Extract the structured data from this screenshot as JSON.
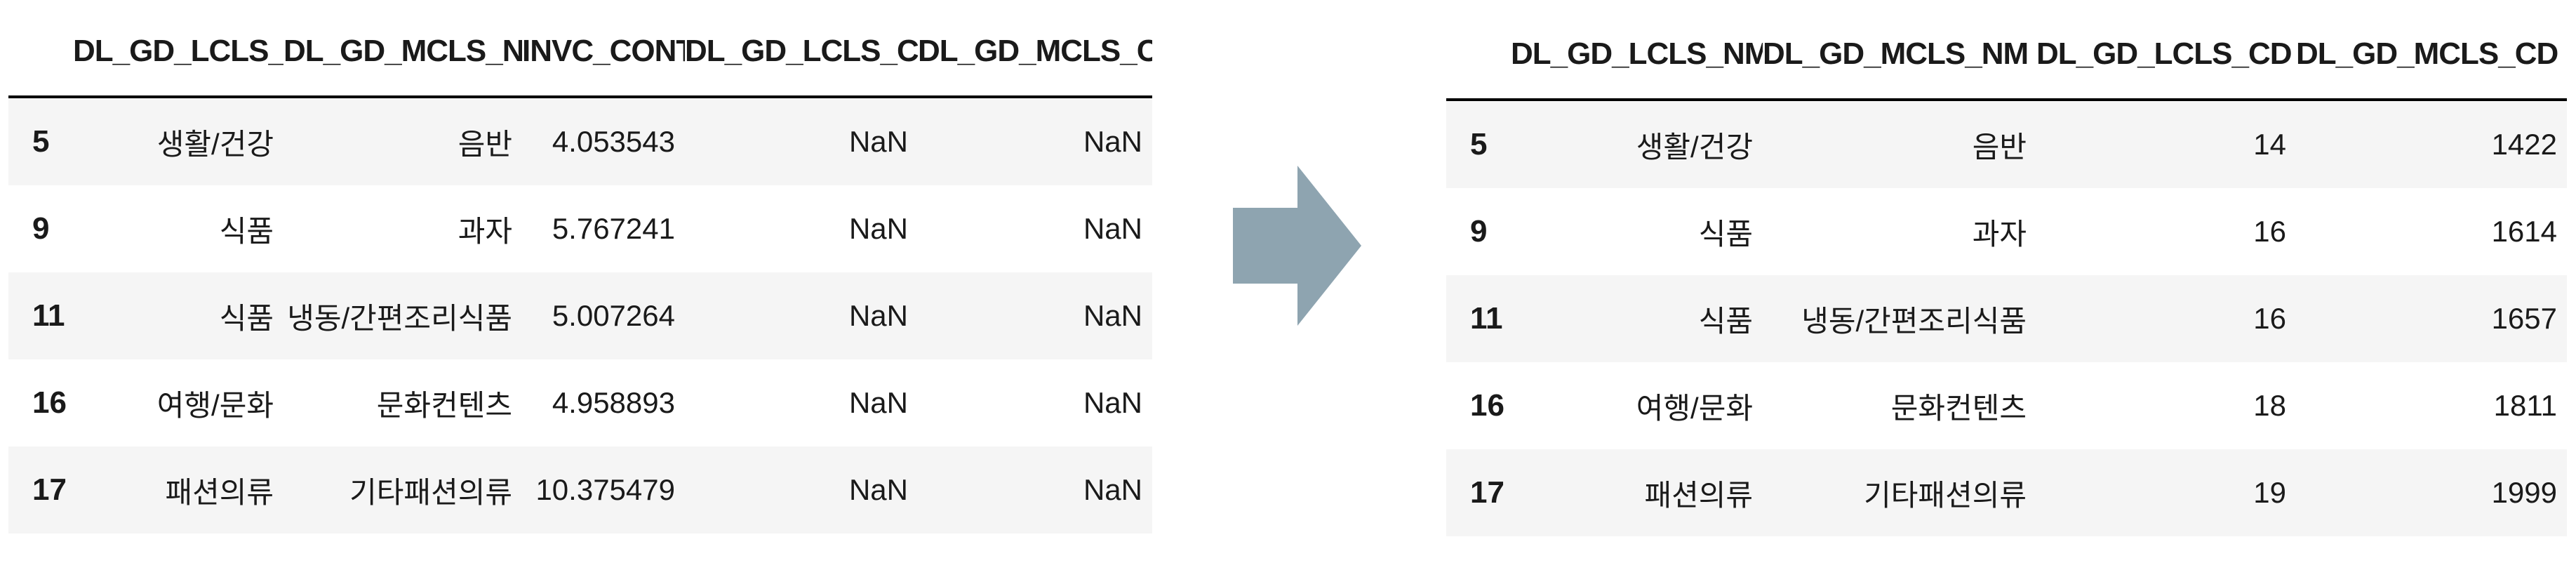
{
  "left_table": {
    "columns": [
      "",
      "DL_GD_LCLS_NM",
      "DL_GD_MCLS_NM",
      "INVC_CONT",
      "DL_GD_LCLS_CD",
      "DL_GD_MCLS_CD"
    ],
    "rows": [
      [
        "5",
        "생활/건강",
        "음반",
        "4.053543",
        "NaN",
        "NaN"
      ],
      [
        "9",
        "식품",
        "과자",
        "5.767241",
        "NaN",
        "NaN"
      ],
      [
        "11",
        "식품",
        "냉동/간편조리식품",
        "5.007264",
        "NaN",
        "NaN"
      ],
      [
        "16",
        "여행/문화",
        "문화컨텐츠",
        "4.958893",
        "NaN",
        "NaN"
      ],
      [
        "17",
        "패션의류",
        "기타패션의류",
        "10.375479",
        "NaN",
        "NaN"
      ]
    ]
  },
  "arrow": {
    "icon": "right-arrow-icon",
    "color": "#8ea4b0"
  },
  "right_table": {
    "columns": [
      "",
      "DL_GD_LCLS_NM",
      "DL_GD_MCLS_NM",
      "DL_GD_LCLS_CD",
      "DL_GD_MCLS_CD"
    ],
    "rows": [
      [
        "5",
        "생활/건강",
        "음반",
        "14",
        "1422"
      ],
      [
        "9",
        "식품",
        "과자",
        "16",
        "1614"
      ],
      [
        "11",
        "식품",
        "냉동/간편조리식품",
        "16",
        "1657"
      ],
      [
        "16",
        "여행/문화",
        "문화컨텐츠",
        "18",
        "1811"
      ],
      [
        "17",
        "패션의류",
        "기타패션의류",
        "19",
        "1999"
      ]
    ]
  }
}
